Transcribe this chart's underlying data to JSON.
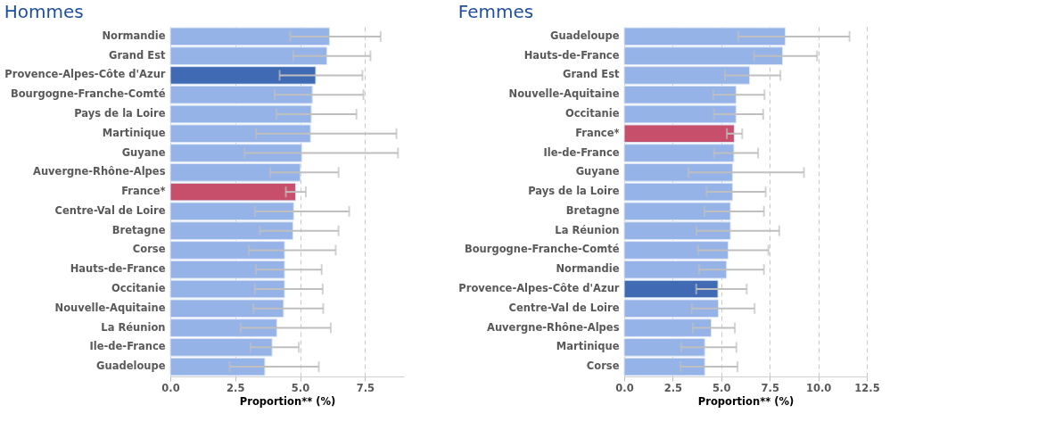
{
  "chart_data": [
    {
      "type": "bar",
      "title": "Hommes",
      "orientation": "horizontal",
      "xlabel": "Proportion** (%)",
      "categories": [
        "Normandie",
        "Grand Est",
        "Provence-Alpes-Côte d'Azur",
        "Bourgogne-Franche-Comté",
        "Pays de la Loire",
        "Martinique",
        "Guyane",
        "Auvergne-Rhône-Alpes",
        "France*",
        "Centre-Val de Loire",
        "Bretagne",
        "Corse",
        "Hauts-de-France",
        "Occitanie",
        "Nouvelle-Aquitaine",
        "La Réunion",
        "Ile-de-France",
        "Guadeloupe"
      ],
      "values": [
        6.13,
        6.03,
        5.6,
        5.47,
        5.43,
        5.4,
        5.06,
        5.01,
        4.83,
        4.75,
        4.72,
        4.4,
        4.4,
        4.4,
        4.36,
        4.1,
        3.92,
        3.64
      ],
      "errors": [
        [
          4.62,
          8.1
        ],
        [
          4.74,
          7.71
        ],
        [
          4.21,
          7.4
        ],
        [
          4.02,
          7.44
        ],
        [
          4.09,
          7.17
        ],
        [
          3.3,
          8.71
        ],
        [
          2.86,
          8.77
        ],
        [
          3.85,
          6.48
        ],
        [
          4.45,
          5.22
        ],
        [
          3.26,
          6.89
        ],
        [
          3.45,
          6.48
        ],
        [
          3.03,
          6.37
        ],
        [
          3.3,
          5.83
        ],
        [
          3.26,
          5.87
        ],
        [
          3.2,
          5.89
        ],
        [
          2.71,
          6.18
        ],
        [
          3.09,
          4.95
        ],
        [
          2.29,
          5.72
        ]
      ],
      "colors": [
        "#95b3e6",
        "#95b3e6",
        "#406ab3",
        "#95b3e6",
        "#95b3e6",
        "#95b3e6",
        "#95b3e6",
        "#95b3e6",
        "#c74f6b",
        "#95b3e6",
        "#95b3e6",
        "#95b3e6",
        "#95b3e6",
        "#95b3e6",
        "#95b3e6",
        "#95b3e6",
        "#95b3e6",
        "#95b3e6"
      ],
      "xlim": [
        0,
        9
      ],
      "xticks": [
        {
          "value": 0,
          "label": "0.0"
        },
        2.5,
        {
          "value": 5,
          "label": "5.0"
        },
        7.5
      ],
      "grid": "x"
    },
    {
      "type": "bar",
      "title": "Femmes",
      "orientation": "horizontal",
      "xlabel": "Proportion** (%)",
      "categories": [
        "Guadeloupe",
        "Hauts-de-France",
        "Grand Est",
        "Nouvelle-Aquitaine",
        "Occitanie",
        "France*",
        "Ile-de-France",
        "Guyane",
        "Pays de la Loire",
        "Bretagne",
        "La Réunion",
        "Bourgogne-Franche-Comté",
        "Normandie",
        "Provence-Alpes-Côte d'Azur",
        "Centre-Val de Loire",
        "Auvergne-Rhône-Alpes",
        "Martinique",
        "Corse"
      ],
      "values": [
        8.3,
        8.16,
        6.46,
        5.76,
        5.76,
        5.67,
        5.65,
        5.58,
        5.58,
        5.47,
        5.47,
        5.35,
        5.27,
        4.83,
        4.85,
        4.48,
        4.15,
        4.15
      ],
      "errors": [
        [
          5.87,
          11.61
        ],
        [
          6.69,
          9.94
        ],
        [
          5.2,
          8.05
        ],
        [
          4.59,
          7.23
        ],
        [
          4.62,
          7.16
        ],
        [
          5.29,
          6.08
        ],
        [
          4.62,
          6.9
        ],
        [
          3.31,
          9.26
        ],
        [
          4.24,
          7.29
        ],
        [
          4.13,
          7.2
        ],
        [
          3.72,
          7.99
        ],
        [
          3.8,
          7.43
        ],
        [
          3.86,
          7.2
        ],
        [
          3.71,
          6.31
        ],
        [
          3.48,
          6.72
        ],
        [
          3.53,
          5.7
        ],
        [
          2.93,
          5.78
        ],
        [
          2.9,
          5.84
        ]
      ],
      "colors": [
        "#95b3e6",
        "#95b3e6",
        "#95b3e6",
        "#95b3e6",
        "#95b3e6",
        "#c74f6b",
        "#95b3e6",
        "#95b3e6",
        "#95b3e6",
        "#95b3e6",
        "#95b3e6",
        "#95b3e6",
        "#95b3e6",
        "#406ab3",
        "#95b3e6",
        "#95b3e6",
        "#95b3e6",
        "#95b3e6"
      ],
      "xlim": [
        0,
        12.5
      ],
      "xticks": [
        {
          "value": 0,
          "label": "0.0"
        },
        2.5,
        {
          "value": 5,
          "label": "5.0"
        },
        7.5,
        {
          "value": 10,
          "label": "10.0"
        },
        12.5
      ],
      "grid": "x"
    }
  ]
}
